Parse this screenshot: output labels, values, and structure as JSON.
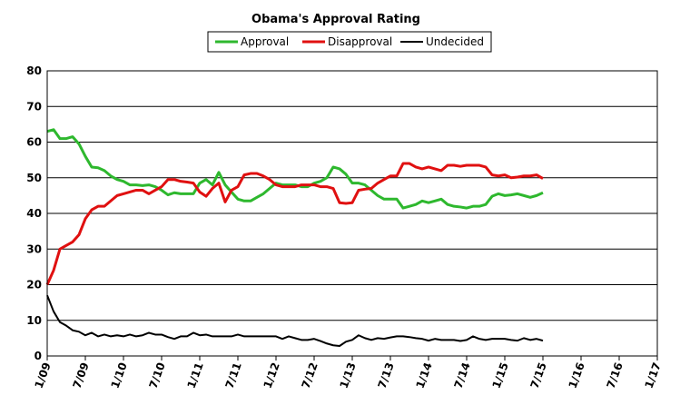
{
  "chart_data": {
    "type": "line",
    "title": "Obama's Approval Rating",
    "xlabel": "",
    "ylabel": "",
    "ylim": [
      0,
      80
    ],
    "y_ticks": [
      "0",
      "10",
      "20",
      "30",
      "40",
      "50",
      "60",
      "70",
      "80"
    ],
    "x_ticks": [
      "1/09",
      "7/09",
      "1/10",
      "7/10",
      "1/11",
      "7/11",
      "1/12",
      "7/12",
      "1/13",
      "7/13",
      "1/14",
      "7/14",
      "1/15",
      "7/15",
      "1/16",
      "7/16",
      "1/17"
    ],
    "grid": "horizontal",
    "legend_position": "top-center",
    "x_unit": "months since 1/09",
    "series": [
      {
        "name": "Approval",
        "color": "#2eb82e",
        "x": [
          0,
          1,
          2,
          3,
          4,
          5,
          6,
          7,
          8,
          9,
          10,
          11,
          12,
          13,
          14,
          15,
          16,
          17,
          18,
          19,
          20,
          21,
          22,
          23,
          24,
          25,
          26,
          27,
          28,
          29,
          30,
          31,
          32,
          33,
          34,
          35,
          36,
          37,
          38,
          39,
          40,
          41,
          42,
          43,
          44,
          45,
          46,
          47,
          48,
          49,
          50,
          51,
          52,
          53,
          54,
          55,
          56,
          57,
          58,
          59,
          60,
          61,
          62,
          63,
          64,
          65,
          66,
          67,
          68,
          69,
          70,
          71,
          72,
          73,
          74,
          75,
          76,
          77,
          78
        ],
        "values": [
          63,
          63.5,
          61,
          61,
          61.5,
          59.5,
          56,
          53,
          52.8,
          52,
          50.5,
          49.5,
          49,
          48,
          48,
          47.8,
          48,
          47.5,
          46.5,
          45.2,
          45.8,
          45.5,
          45.5,
          45.5,
          48.5,
          49.5,
          48,
          51.5,
          48,
          46,
          44,
          43.5,
          43.5,
          44.5,
          45.5,
          47,
          48.5,
          48,
          48,
          48,
          47.5,
          47.5,
          48.5,
          49,
          50,
          53,
          52.5,
          51,
          48.5,
          48.5,
          48,
          46.5,
          45,
          44,
          44,
          44,
          41.5,
          42,
          42.5,
          43.5,
          43,
          43.5,
          44,
          42.5,
          42,
          41.8,
          41.5,
          42,
          42,
          42.5,
          44.8,
          45.5,
          45,
          45.2,
          45.5,
          45,
          44.5,
          45,
          45.8
        ]
      },
      {
        "name": "Disapproval",
        "color": "#e01010",
        "x": [
          0,
          1,
          2,
          3,
          4,
          5,
          6,
          7,
          8,
          9,
          10,
          11,
          12,
          13,
          14,
          15,
          16,
          17,
          18,
          19,
          20,
          21,
          22,
          23,
          24,
          25,
          26,
          27,
          28,
          29,
          30,
          31,
          32,
          33,
          34,
          35,
          36,
          37,
          38,
          39,
          40,
          41,
          42,
          43,
          44,
          45,
          46,
          47,
          48,
          49,
          50,
          51,
          52,
          53,
          54,
          55,
          56,
          57,
          58,
          59,
          60,
          61,
          62,
          63,
          64,
          65,
          66,
          67,
          68,
          69,
          70,
          71,
          72,
          73,
          74,
          75,
          76,
          77,
          78
        ],
        "values": [
          20,
          24,
          30,
          31,
          32,
          34,
          38.5,
          41,
          42,
          42,
          43.5,
          45,
          45.5,
          46,
          46.5,
          46.5,
          45.5,
          46.5,
          47.5,
          49.5,
          49.5,
          49,
          48.8,
          48.5,
          46,
          44.8,
          47,
          48.5,
          43.2,
          46.5,
          47.5,
          50.8,
          51.2,
          51.2,
          50.5,
          49.5,
          48,
          47.5,
          47.5,
          47.5,
          48,
          48,
          48,
          47.5,
          47.5,
          47,
          43,
          42.8,
          43,
          46.5,
          46.8,
          47,
          48.5,
          49.5,
          50.5,
          50.5,
          54,
          54,
          53,
          52.5,
          53,
          52.5,
          52,
          53.5,
          53.5,
          53.2,
          53.5,
          53.5,
          53.5,
          53,
          50.8,
          50.5,
          50.8,
          50,
          50.2,
          50.5,
          50.5,
          50.8,
          49.8
        ]
      },
      {
        "name": "Undecided",
        "color": "#000000",
        "x": [
          0,
          1,
          2,
          3,
          4,
          5,
          6,
          7,
          8,
          9,
          10,
          11,
          12,
          13,
          14,
          15,
          16,
          17,
          18,
          19,
          20,
          21,
          22,
          23,
          24,
          25,
          26,
          27,
          28,
          29,
          30,
          31,
          32,
          33,
          34,
          35,
          36,
          37,
          38,
          39,
          40,
          41,
          42,
          43,
          44,
          45,
          46,
          47,
          48,
          49,
          50,
          51,
          52,
          53,
          54,
          55,
          56,
          57,
          58,
          59,
          60,
          61,
          62,
          63,
          64,
          65,
          66,
          67,
          68,
          69,
          70,
          71,
          72,
          73,
          74,
          75,
          76,
          77,
          78
        ],
        "values": [
          17,
          12.5,
          9.5,
          8.5,
          7.2,
          6.8,
          5.8,
          6.5,
          5.5,
          6,
          5.5,
          5.8,
          5.5,
          6,
          5.5,
          5.8,
          6.5,
          6,
          6,
          5.3,
          4.8,
          5.5,
          5.5,
          6.5,
          5.8,
          6,
          5.5,
          5.5,
          5.5,
          5.5,
          6,
          5.5,
          5.5,
          5.5,
          5.5,
          5.5,
          5.5,
          4.8,
          5.5,
          5,
          4.5,
          4.5,
          4.8,
          4.2,
          3.5,
          3,
          2.8,
          4,
          4.5,
          5.8,
          5,
          4.5,
          5,
          4.8,
          5.2,
          5.5,
          5.5,
          5.3,
          5,
          4.8,
          4.3,
          4.8,
          4.5,
          4.5,
          4.5,
          4.2,
          4.5,
          5.5,
          4.8,
          4.5,
          4.8,
          4.8,
          4.8,
          4.5,
          4.3,
          5,
          4.5,
          4.8,
          4.3
        ]
      }
    ]
  }
}
